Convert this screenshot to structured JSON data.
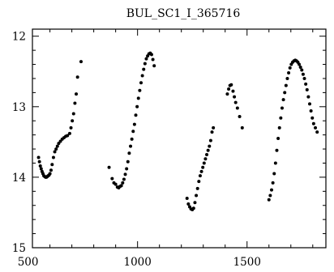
{
  "chart_data": {
    "type": "scatter",
    "title": "BUL_SC1_I_365716",
    "xlabel": "",
    "ylabel": "",
    "xlim": [
      520,
      1860
    ],
    "ylim": [
      15,
      11.9
    ],
    "y_inverted": true,
    "grid": false,
    "x_major_ticks": [
      500,
      1000,
      1500
    ],
    "x_minor_step": 100,
    "y_major_ticks": [
      12,
      13,
      14,
      15
    ],
    "y_minor_step": 0.2,
    "series": [
      {
        "marker": "dot",
        "color": "#000000",
        "points": [
          [
            548,
            13.72
          ],
          [
            552,
            13.78
          ],
          [
            556,
            13.84
          ],
          [
            560,
            13.88
          ],
          [
            564,
            13.92
          ],
          [
            568,
            13.95
          ],
          [
            572,
            13.98
          ],
          [
            576,
            13.99
          ],
          [
            580,
            14.0
          ],
          [
            584,
            14.0
          ],
          [
            588,
            13.99
          ],
          [
            592,
            13.98
          ],
          [
            596,
            13.97
          ],
          [
            600,
            13.95
          ],
          [
            605,
            13.9
          ],
          [
            610,
            13.82
          ],
          [
            616,
            13.72
          ],
          [
            622,
            13.64
          ],
          [
            628,
            13.6
          ],
          [
            634,
            13.56
          ],
          [
            640,
            13.52
          ],
          [
            648,
            13.49
          ],
          [
            656,
            13.46
          ],
          [
            664,
            13.44
          ],
          [
            672,
            13.42
          ],
          [
            680,
            13.41
          ],
          [
            690,
            13.38
          ],
          [
            696,
            13.3
          ],
          [
            702,
            13.2
          ],
          [
            708,
            13.1
          ],
          [
            714,
            12.95
          ],
          [
            720,
            12.82
          ],
          [
            726,
            12.58
          ],
          [
            742,
            12.36
          ],
          [
            870,
            13.86
          ],
          [
            884,
            14.02
          ],
          [
            892,
            14.08
          ],
          [
            900,
            14.1
          ],
          [
            908,
            14.14
          ],
          [
            914,
            14.15
          ],
          [
            920,
            14.13
          ],
          [
            926,
            14.12
          ],
          [
            932,
            14.08
          ],
          [
            938,
            14.03
          ],
          [
            944,
            13.96
          ],
          [
            950,
            13.88
          ],
          [
            956,
            13.78
          ],
          [
            962,
            13.66
          ],
          [
            968,
            13.56
          ],
          [
            974,
            13.46
          ],
          [
            980,
            13.35
          ],
          [
            986,
            13.25
          ],
          [
            992,
            13.12
          ],
          [
            998,
            13.0
          ],
          [
            1004,
            12.88
          ],
          [
            1010,
            12.77
          ],
          [
            1016,
            12.66
          ],
          [
            1022,
            12.56
          ],
          [
            1028,
            12.47
          ],
          [
            1034,
            12.39
          ],
          [
            1040,
            12.32
          ],
          [
            1046,
            12.28
          ],
          [
            1052,
            12.25
          ],
          [
            1058,
            12.24
          ],
          [
            1064,
            12.26
          ],
          [
            1070,
            12.33
          ],
          [
            1076,
            12.42
          ],
          [
            1226,
            14.3
          ],
          [
            1232,
            14.38
          ],
          [
            1238,
            14.42
          ],
          [
            1244,
            14.45
          ],
          [
            1250,
            14.46
          ],
          [
            1256,
            14.44
          ],
          [
            1262,
            14.36
          ],
          [
            1268,
            14.26
          ],
          [
            1274,
            14.16
          ],
          [
            1280,
            14.06
          ],
          [
            1286,
            13.98
          ],
          [
            1292,
            13.92
          ],
          [
            1298,
            13.86
          ],
          [
            1304,
            13.8
          ],
          [
            1310,
            13.74
          ],
          [
            1316,
            13.68
          ],
          [
            1322,
            13.62
          ],
          [
            1328,
            13.56
          ],
          [
            1334,
            13.48
          ],
          [
            1340,
            13.36
          ],
          [
            1346,
            13.3
          ],
          [
            1410,
            12.82
          ],
          [
            1416,
            12.75
          ],
          [
            1422,
            12.7
          ],
          [
            1428,
            12.69
          ],
          [
            1436,
            12.78
          ],
          [
            1442,
            12.86
          ],
          [
            1448,
            12.94
          ],
          [
            1456,
            13.02
          ],
          [
            1466,
            13.14
          ],
          [
            1478,
            13.3
          ],
          [
            1600,
            14.32
          ],
          [
            1606,
            14.26
          ],
          [
            1612,
            14.18
          ],
          [
            1618,
            14.08
          ],
          [
            1624,
            13.95
          ],
          [
            1630,
            13.8
          ],
          [
            1636,
            13.62
          ],
          [
            1642,
            13.45
          ],
          [
            1648,
            13.3
          ],
          [
            1654,
            13.16
          ],
          [
            1660,
            13.02
          ],
          [
            1666,
            12.9
          ],
          [
            1672,
            12.8
          ],
          [
            1678,
            12.7
          ],
          [
            1684,
            12.6
          ],
          [
            1690,
            12.52
          ],
          [
            1696,
            12.45
          ],
          [
            1702,
            12.4
          ],
          [
            1708,
            12.37
          ],
          [
            1714,
            12.35
          ],
          [
            1720,
            12.34
          ],
          [
            1726,
            12.35
          ],
          [
            1732,
            12.37
          ],
          [
            1738,
            12.4
          ],
          [
            1744,
            12.44
          ],
          [
            1750,
            12.48
          ],
          [
            1756,
            12.54
          ],
          [
            1762,
            12.6
          ],
          [
            1768,
            12.68
          ],
          [
            1774,
            12.76
          ],
          [
            1780,
            12.86
          ],
          [
            1786,
            12.96
          ],
          [
            1792,
            13.06
          ],
          [
            1798,
            13.16
          ],
          [
            1804,
            13.24
          ],
          [
            1812,
            13.3
          ],
          [
            1820,
            13.36
          ]
        ]
      }
    ]
  }
}
